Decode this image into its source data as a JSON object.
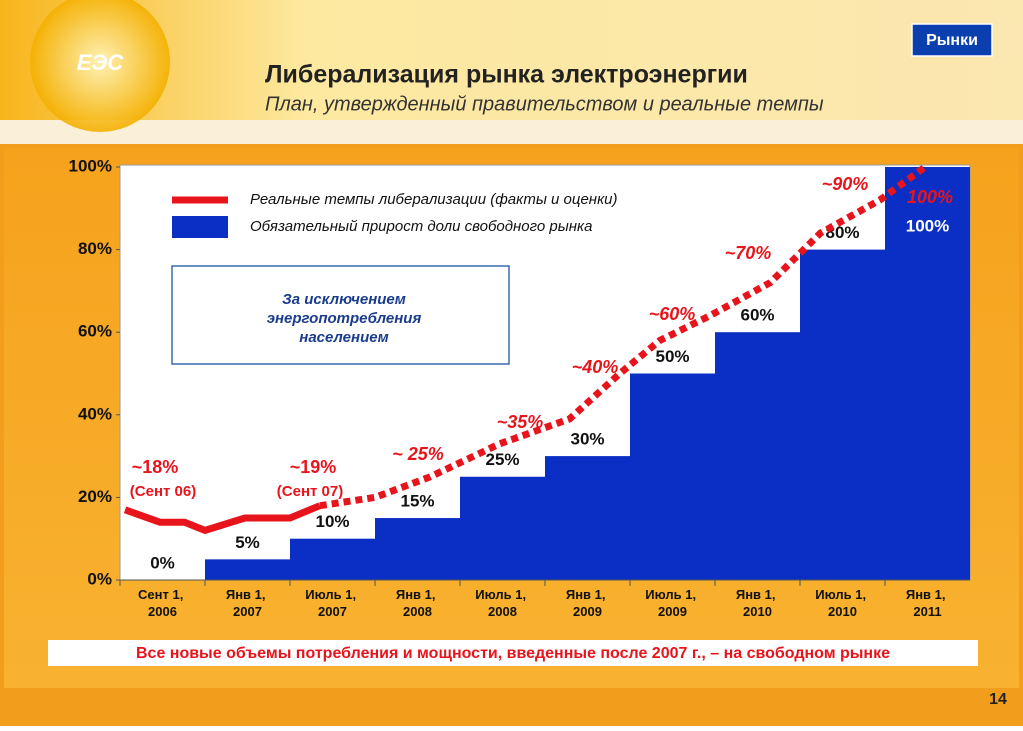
{
  "header": {
    "logo": "ЕЭС",
    "badge": "Рынки",
    "title": "Либерализация рынка электроэнергии",
    "subtitle": "План, утвержденный правительством и реальные темпы"
  },
  "chart_data": {
    "type": "step",
    "categories": [
      "Сент 1, 2006",
      "Янв 1, 2007",
      "Июль 1, 2007",
      "Янв 1, 2008",
      "Июль 1, 2008",
      "Янв 1, 2009",
      "Июль 1, 2009",
      "Янв 1, 2010",
      "Июль 1, 2010",
      "Янв 1, 2011"
    ],
    "ylim": [
      0,
      100
    ],
    "yticks": [
      {
        "value": 0,
        "label": "0%"
      },
      {
        "value": 20,
        "label": "20%"
      },
      {
        "value": 40,
        "label": "40%"
      },
      {
        "value": 60,
        "label": "60%"
      },
      {
        "value": 80,
        "label": "80%"
      },
      {
        "value": 100,
        "label": "100%"
      }
    ],
    "series": [
      {
        "name": "Обязательный прирост доли свободного рынка",
        "color": "#0b2fc4",
        "values": [
          0,
          5,
          10,
          15,
          25,
          30,
          50,
          60,
          80,
          100
        ],
        "value_labels": [
          "0%",
          "5%",
          "10%",
          "15%",
          "25%",
          "30%",
          "50%",
          "60%",
          "80%",
          "100%"
        ]
      },
      {
        "name": "Реальные темпы либерализации (факты и оценки)",
        "color": "#e8141c",
        "segments": [
          {
            "style": "solid",
            "x": [
              -0.44,
              -0.03,
              0.26,
              0.5,
              0.97,
              1.5,
              1.85
            ],
            "values": [
              17,
              14,
              14,
              12,
              15,
              15,
              18
            ]
          },
          {
            "style": "dotted",
            "x": [
              1.85,
              2.5,
              3.15,
              3.97,
              4.79,
              5.38,
              5.85,
              6.44,
              7.15,
              7.74,
              8.44,
              8.97
            ],
            "values": [
              18,
              20,
              25,
              33,
              39,
              50,
              58,
              64,
              72,
              84,
              92,
              100
            ]
          }
        ]
      }
    ],
    "annotations": [
      "~18%",
      "(Сент 06)",
      "~19%",
      "(Сент 07)",
      "~ 25%",
      "~35%",
      "~40%",
      "~60%",
      "~70%",
      "~90%",
      "100%"
    ],
    "note": [
      "За исключением",
      "энергопотребления",
      "населением"
    ]
  },
  "footer": {
    "banner": "Все новые объемы потребления и мощности, введенные после 2007 г., – на свободном рынке",
    "page_number": "14"
  }
}
